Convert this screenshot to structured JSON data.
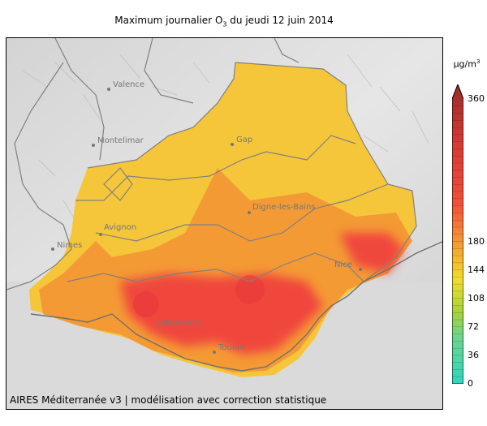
{
  "title": {
    "prefix": "Maximum journalier O",
    "subscript": "3",
    "suffix": " du jeudi 12 juin 2014"
  },
  "credit": "AIRES Méditerranée v3 | modélisation avec correction statistique",
  "colorbar": {
    "unit_base": "µg/m",
    "unit_exp": "3",
    "ticks": [
      "0",
      "36",
      "72",
      "108",
      "144",
      "180",
      "360"
    ],
    "tick_values": [
      0,
      36,
      72,
      108,
      144,
      180,
      360
    ],
    "colors": {
      "low": "#2fd6c0",
      "green": "#8fd23a",
      "yellow": "#f2dc2e",
      "orange": "#f59a30",
      "red": "#f24a3a",
      "dark_red": "#a8302a"
    }
  },
  "cities": [
    {
      "name": "Valence"
    },
    {
      "name": "Montelimar"
    },
    {
      "name": "Gap"
    },
    {
      "name": "Digne-les-Bains"
    },
    {
      "name": "Avignon"
    },
    {
      "name": "Nimes"
    },
    {
      "name": "Nice"
    },
    {
      "name": "Marseille"
    },
    {
      "name": "Toulon"
    }
  ]
}
